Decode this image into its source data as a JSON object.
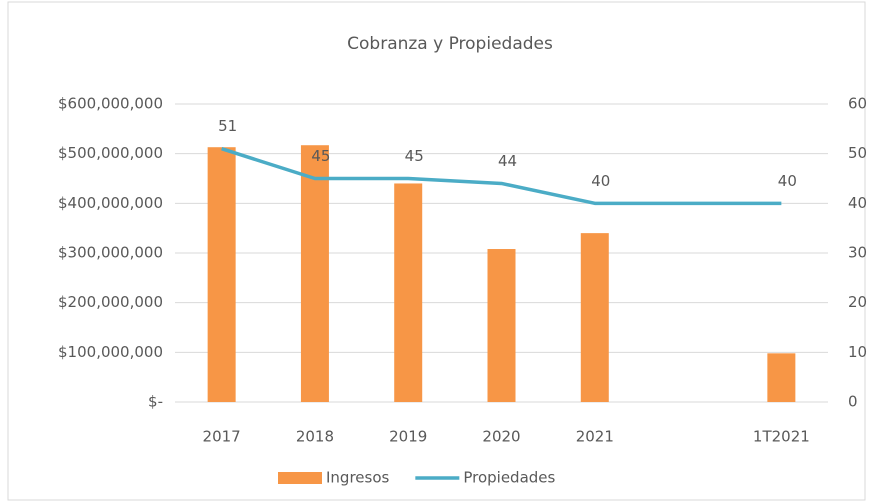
{
  "chart_data": {
    "type": "bar-line",
    "title": "Cobranza y Propiedades",
    "categories": [
      "2017",
      "2018",
      "2019",
      "2020",
      "2021",
      null,
      "1T2021"
    ],
    "series": [
      {
        "name": "Ingresos",
        "type": "bar",
        "color": "#f79646",
        "values": [
          513000000,
          517000000,
          440000000,
          308000000,
          340000000,
          null,
          98000000
        ]
      },
      {
        "name": "Propiedades",
        "type": "line",
        "axis": "y2",
        "color": "#4bacc6",
        "values": [
          51,
          45,
          45,
          44,
          40,
          40,
          40
        ],
        "value_labels": [
          "51",
          "45",
          "45",
          "44",
          "40",
          null,
          "40"
        ]
      }
    ],
    "ylim": [
      0,
      600000000
    ],
    "yticks": [
      {
        "value": 0,
        "label": "$-"
      },
      {
        "value": 100000000,
        "label": "$100,000,000"
      },
      {
        "value": 200000000,
        "label": "$200,000,000"
      },
      {
        "value": 300000000,
        "label": "$300,000,000"
      },
      {
        "value": 400000000,
        "label": "$400,000,000"
      },
      {
        "value": 500000000,
        "label": "$500,000,000"
      },
      {
        "value": 600000000,
        "label": "$600,000,000"
      }
    ],
    "y2lim": [
      0,
      60
    ],
    "y2ticks": [
      0,
      10,
      20,
      30,
      40,
      50,
      60
    ],
    "grid": true,
    "legend": "bottom"
  }
}
